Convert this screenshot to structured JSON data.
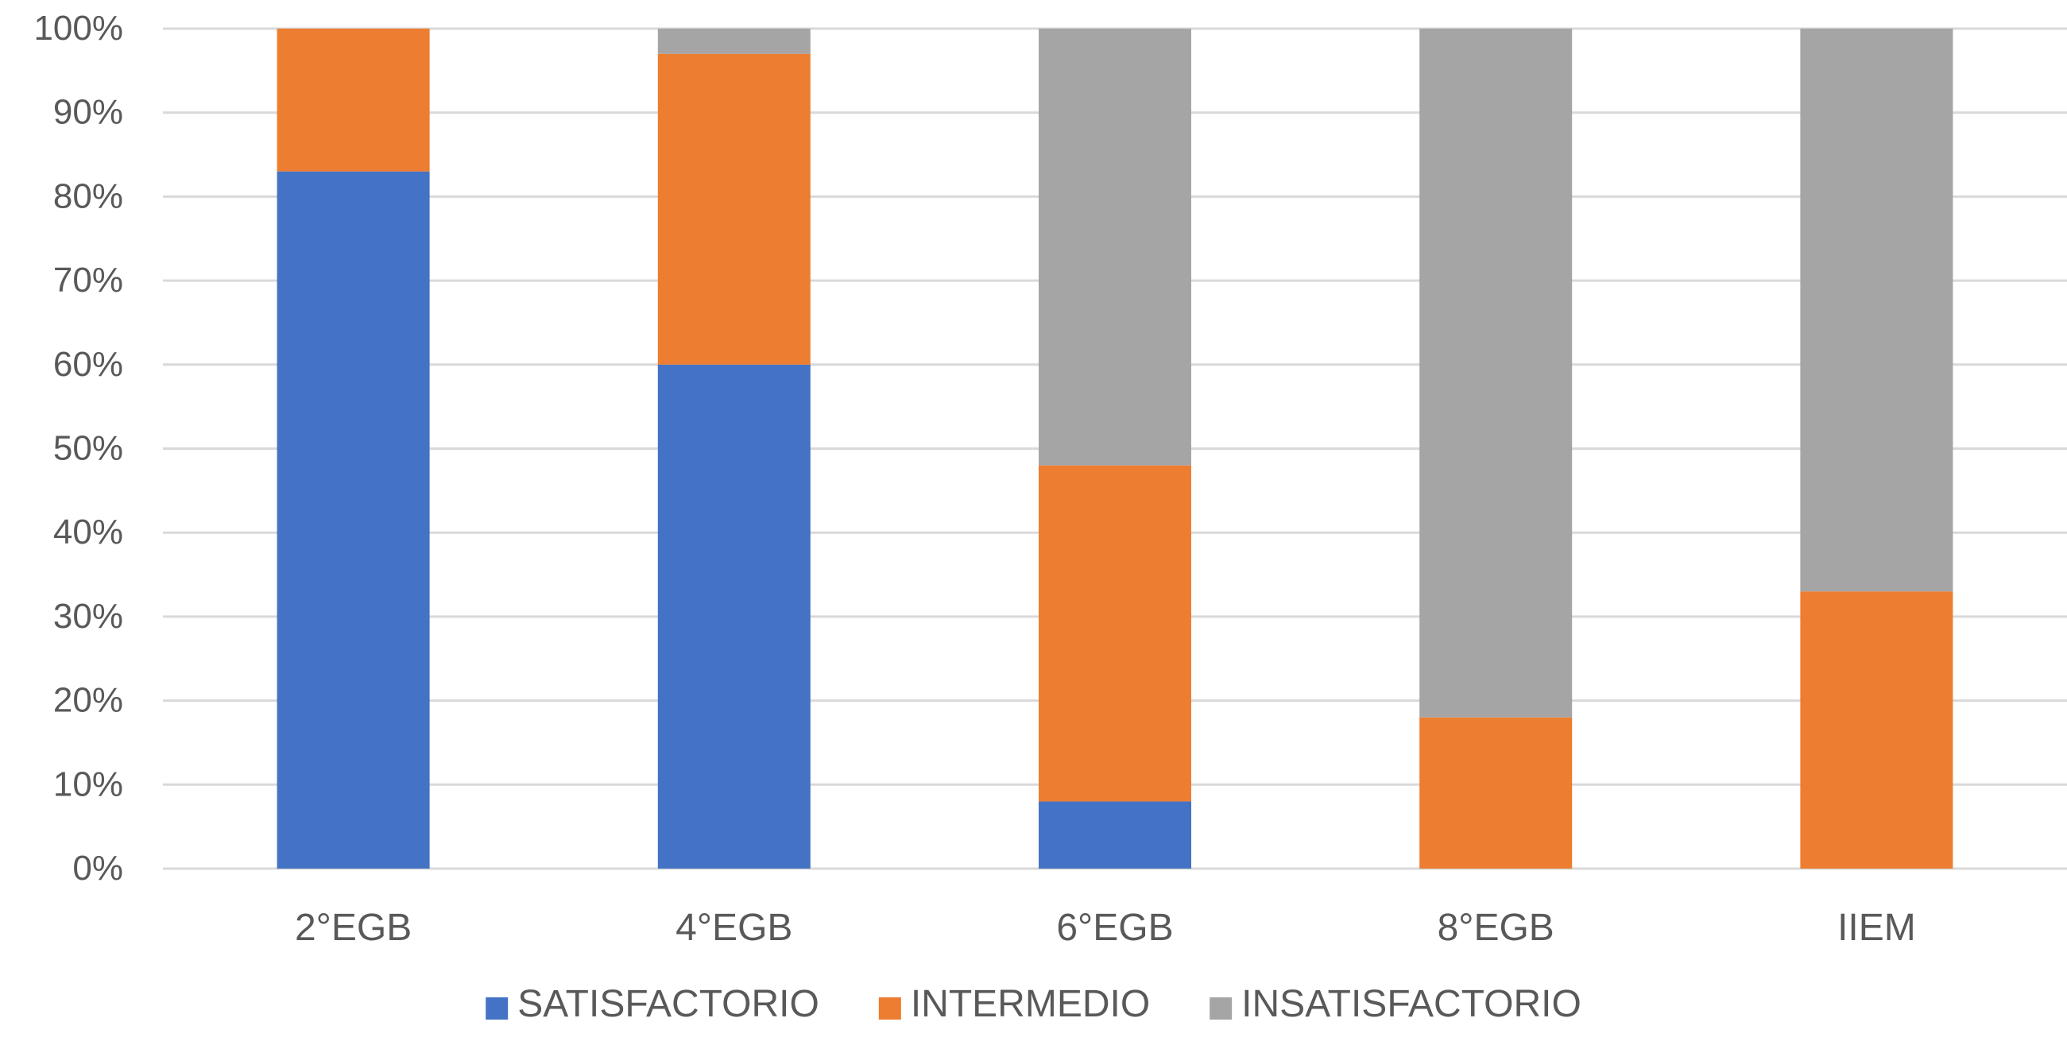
{
  "chart_data": {
    "type": "bar",
    "stacked": true,
    "percent": true,
    "title": "",
    "xlabel": "",
    "ylabel": "",
    "ylim": [
      0,
      100
    ],
    "yticks": [
      "0%",
      "10%",
      "20%",
      "30%",
      "40%",
      "50%",
      "60%",
      "70%",
      "80%",
      "90%",
      "100%"
    ],
    "grid": true,
    "legend_position": "bottom",
    "categories": [
      "2°EGB",
      "4°EGB",
      "6°EGB",
      "8°EGB",
      "IIEM"
    ],
    "series": [
      {
        "name": "SATISFACTORIO",
        "color": "#4472C4",
        "values": [
          83,
          60,
          8,
          0,
          0
        ]
      },
      {
        "name": "INTERMEDIO",
        "color": "#ED7D31",
        "values": [
          17,
          37,
          40,
          18,
          33
        ]
      },
      {
        "name": "INSATISFACTORIO",
        "color": "#A5A5A5",
        "values": [
          0,
          3,
          52,
          82,
          67
        ]
      }
    ]
  },
  "colors": {
    "gridline": "#D9D9D9",
    "text": "#595959",
    "background": "#FFFFFF"
  }
}
